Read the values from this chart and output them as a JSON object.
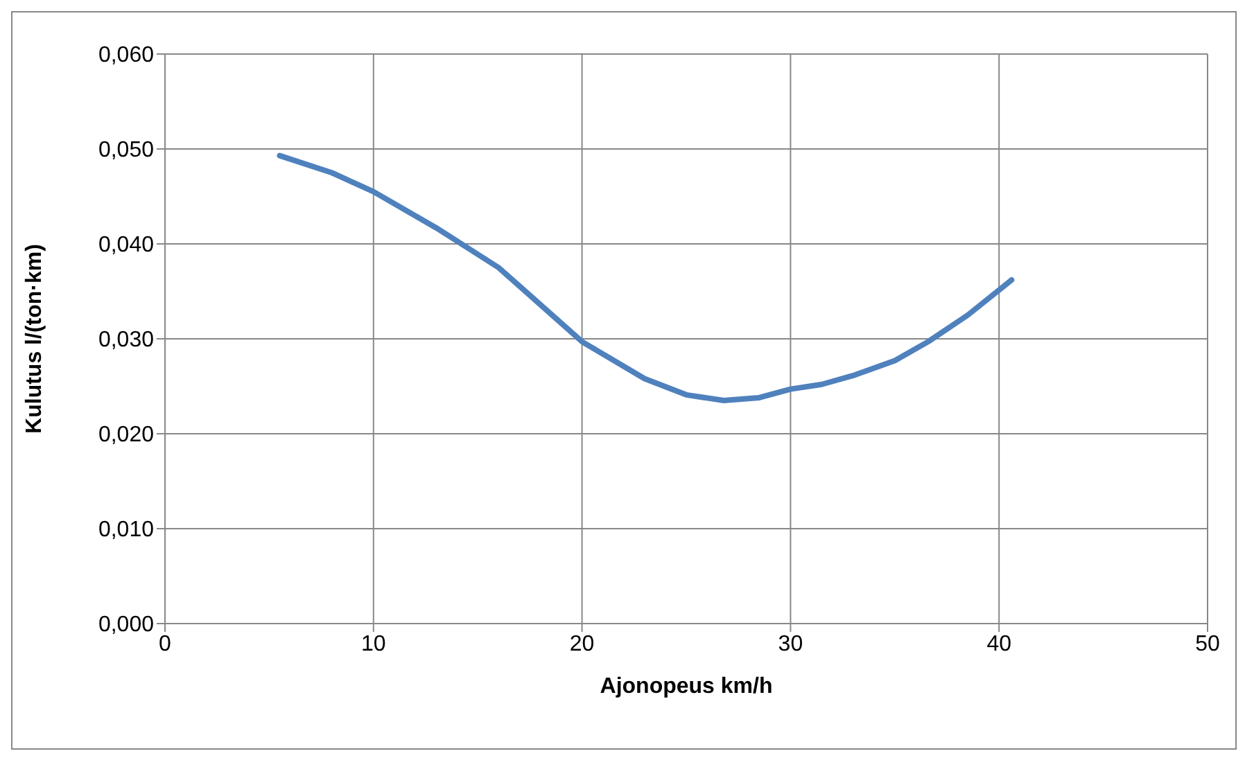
{
  "chart_data": {
    "type": "line",
    "xlabel": "Ajonopeus km/h",
    "ylabel": "Kulutus l/(ton·km)",
    "x": [
      5.5,
      8,
      10,
      13,
      16,
      20,
      23,
      25,
      26.8,
      28.5,
      30,
      31.5,
      33.1,
      35,
      36.6,
      38.5,
      40.6
    ],
    "series": [
      {
        "color": "#4f81bd",
        "values": [
          0.0493,
          0.0475,
          0.0455,
          0.0417,
          0.0375,
          0.0297,
          0.0258,
          0.0241,
          0.0235,
          0.0238,
          0.0247,
          0.0252,
          0.0262,
          0.0277,
          0.0297,
          0.0325,
          0.0362
        ]
      }
    ],
    "xlim": [
      0,
      50
    ],
    "xticks": [
      0,
      10,
      20,
      30,
      40,
      50
    ],
    "ylim": [
      0,
      0.06
    ],
    "yticks": [
      {
        "value": 0,
        "label": "0,000"
      },
      {
        "value": 0.01,
        "label": "0,010"
      },
      {
        "value": 0.02,
        "label": "0,020"
      },
      {
        "value": 0.03,
        "label": "0,030"
      },
      {
        "value": 0.04,
        "label": "0,040"
      },
      {
        "value": 0.05,
        "label": "0,050"
      },
      {
        "value": 0.06,
        "label": "0,060"
      }
    ],
    "grid": true,
    "marker": "none",
    "line_style": "solid",
    "legend": false
  }
}
